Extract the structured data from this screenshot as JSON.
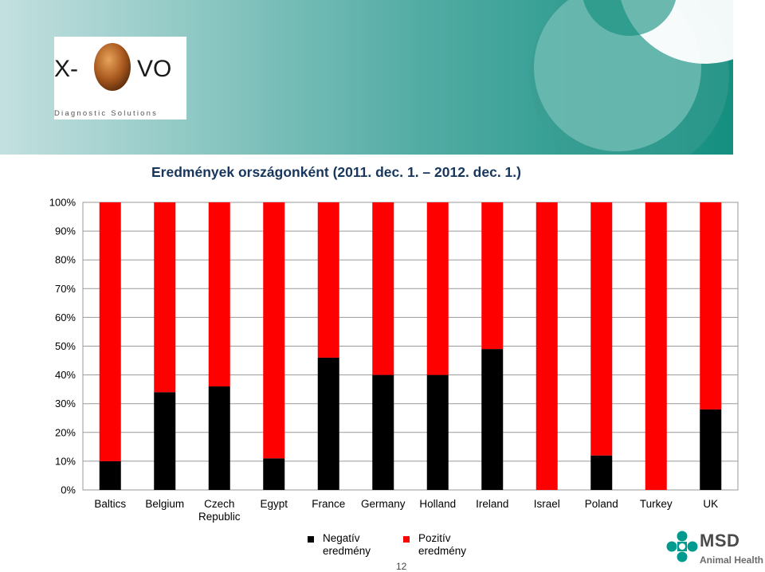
{
  "header": {
    "logo": {
      "text_left": "X-",
      "text_right": "VO",
      "tagline": "Diagnostic Solutions"
    }
  },
  "slide": {
    "title": "Eredmények országonként (2011. dec. 1. – 2012. dec. 1.)",
    "page_number": "12"
  },
  "footer": {
    "brand": "MSD",
    "brand_sub": "Animal Health",
    "brand_color": "#009a8e"
  },
  "colors": {
    "banner_left": "#c3e0df",
    "banner_right": "#0d8c7c",
    "negative": "#000000",
    "positive": "#ff0000"
  },
  "chart_data": {
    "type": "bar",
    "stacked": true,
    "percent": true,
    "categories": [
      "Baltics",
      "Belgium",
      "Czech Republic",
      "Egypt",
      "France",
      "Germany",
      "Holland",
      "Ireland",
      "Israel",
      "Poland",
      "Turkey",
      "UK"
    ],
    "category_lines": [
      [
        "Baltics"
      ],
      [
        "Belgium"
      ],
      [
        "Czech",
        "Republic"
      ],
      [
        "Egypt"
      ],
      [
        "France"
      ],
      [
        "Germany"
      ],
      [
        "Holland"
      ],
      [
        "Ireland"
      ],
      [
        "Israel"
      ],
      [
        "Poland"
      ],
      [
        "Turkey"
      ],
      [
        "UK"
      ]
    ],
    "series": [
      {
        "name": "Negatív eredmény",
        "color": "#000000",
        "values": [
          10,
          34,
          36,
          11,
          46,
          40,
          40,
          49,
          0,
          12,
          0,
          28
        ]
      },
      {
        "name": "Pozitív eredmény",
        "color": "#ff0000",
        "values": [
          90,
          66,
          64,
          89,
          54,
          60,
          60,
          51,
          100,
          88,
          100,
          72
        ]
      }
    ],
    "ylim": [
      0,
      100
    ],
    "yticks": [
      "0%",
      "10%",
      "20%",
      "30%",
      "40%",
      "50%",
      "60%",
      "70%",
      "80%",
      "90%",
      "100%"
    ],
    "grid": true,
    "legend_position": "bottom"
  }
}
